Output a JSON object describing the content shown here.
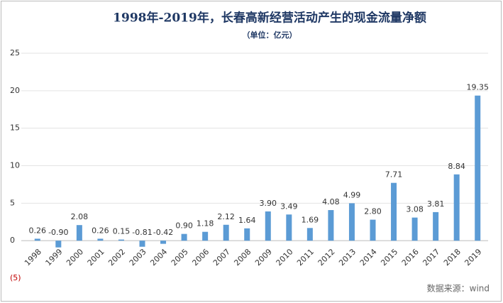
{
  "chart_data": {
    "type": "bar",
    "title": "1998年-2019年，长春高新经营活动产生的现金流量净额",
    "subtitle": "（单位：亿元）",
    "source": "数据来源：wind",
    "categories": [
      "1998",
      "1999",
      "2000",
      "2001",
      "2002",
      "2003",
      "2004",
      "2005",
      "2006",
      "2007",
      "2008",
      "2009",
      "2010",
      "2011",
      "2012",
      "2013",
      "2014",
      "2015",
      "2016",
      "2017",
      "2018",
      "2019"
    ],
    "values": [
      0.26,
      -0.9,
      2.08,
      0.26,
      0.15,
      -0.81,
      -0.42,
      0.9,
      1.18,
      2.12,
      1.64,
      3.9,
      3.49,
      1.69,
      4.08,
      4.99,
      2.8,
      7.71,
      3.08,
      3.81,
      8.84,
      19.35
    ],
    "value_labels": [
      "0.26",
      "-0.90",
      "2.08",
      "0.26",
      "0.15",
      "-0.81",
      "-0.42",
      "0.90",
      "1.18",
      "2.12",
      "1.64",
      "3.90",
      "3.49",
      "1.69",
      "4.08",
      "4.99",
      "2.80",
      "7.71",
      "3.08",
      "3.81",
      "8.84",
      "19.35"
    ],
    "color": "#5b9bd5",
    "ylim": [
      -5,
      25
    ],
    "yticks": [
      {
        "value": -5,
        "label": "(5)"
      },
      0,
      5,
      10,
      15,
      20,
      25
    ],
    "negative_tick_color": "#c00000",
    "grid": true
  }
}
